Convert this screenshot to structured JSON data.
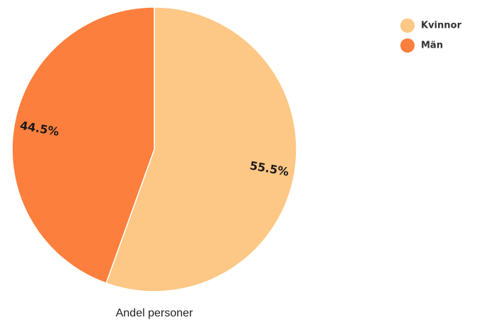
{
  "chart_data": {
    "type": "pie",
    "categories": [
      "Kvinnor",
      "Män"
    ],
    "values": [
      55.5,
      44.5
    ],
    "value_labels": [
      "55.5%",
      "44.5%"
    ],
    "colors": [
      "#fdc785",
      "#fd7f3d"
    ],
    "xlabel": "Andel personer",
    "legend": {
      "placement": "top-right",
      "entries": [
        "Kvinnor",
        "Män"
      ]
    }
  }
}
